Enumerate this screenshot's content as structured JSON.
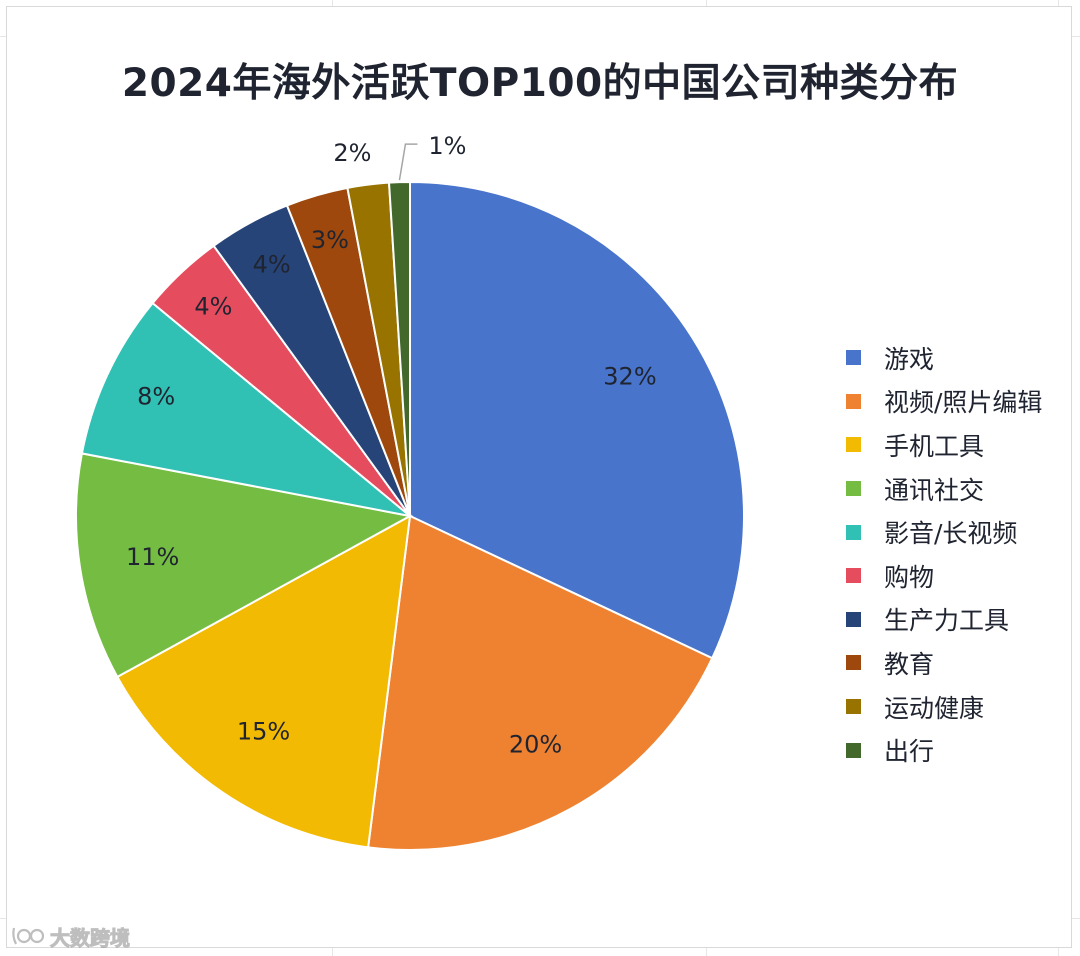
{
  "chart_data": {
    "type": "pie",
    "title": "2024年海外活跃TOP100的中国公司种类分布",
    "categories": [
      "游戏",
      "视频/照片编辑",
      "手机工具",
      "通讯社交",
      "影音/长视频",
      "购物",
      "生产力工具",
      "教育",
      "运动健康",
      "出行"
    ],
    "values": [
      32,
      20,
      15,
      11,
      8,
      4,
      4,
      3,
      2,
      1
    ],
    "labels": [
      "32%",
      "20%",
      "15%",
      "11%",
      "8%",
      "4%",
      "4%",
      "3%",
      "2%",
      "1%"
    ],
    "colors": [
      "#4874cb",
      "#ee8230",
      "#f2ba02",
      "#75bd42",
      "#30c0b4",
      "#e54c5e",
      "#264478",
      "#9e480e",
      "#997300",
      "#43682b"
    ],
    "legend_position": "right"
  },
  "watermark": {
    "text": "大数跨境"
  }
}
